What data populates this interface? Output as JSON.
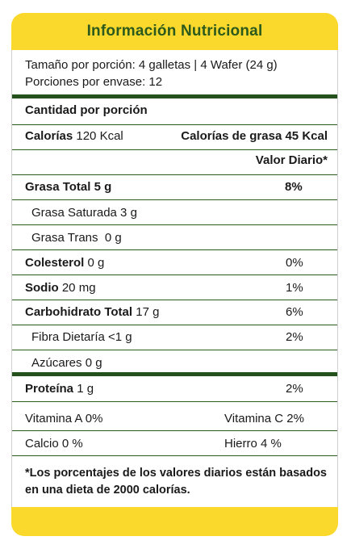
{
  "header": {
    "title": "Información Nutricional"
  },
  "serving": {
    "size": "Tamaño por porción: 4 galletas | 4 Wafer (24 g)",
    "per_container": "Porciones por envase: 12"
  },
  "amount_header": "Cantidad por porción",
  "calories": {
    "label": "Calorías",
    "value": "120 Kcal",
    "fat_calories": "Calorías de grasa 45 Kcal"
  },
  "dv_header": "Valor Diario*",
  "rows": [
    {
      "label": "Grasa Total 5 g",
      "amount": "",
      "dv": "8%"
    },
    {
      "label": "Grasa Saturada 3 g",
      "amount": "",
      "dv": ""
    },
    {
      "label": "Grasa Trans  0 g",
      "amount": "",
      "dv": ""
    },
    {
      "label": "Colesterol",
      "amount": "0 g",
      "dv": "0%"
    },
    {
      "label": "Sodio",
      "amount": "20 mg",
      "dv": "1%"
    },
    {
      "label": "Carbohidrato Total",
      "amount": "17 g",
      "dv": "6%"
    },
    {
      "label": "Fibra Dietaría <1 g",
      "amount": "",
      "dv": "2%"
    },
    {
      "label": "Azúcares 0 g",
      "amount": "",
      "dv": ""
    },
    {
      "label": "Proteína",
      "amount": "1 g",
      "dv": "2%"
    }
  ],
  "vitamins": [
    {
      "left": "Vitamina A 0%",
      "right": "Vitamina C 2%"
    },
    {
      "left": "Calcio 0 %",
      "right": "Hierro 4 %"
    }
  ],
  "footnote": "*Los porcentajes de los valores diarios están basados en una dieta de 2000 calorías.",
  "colors": {
    "header_bg": "#fad92c",
    "title": "#2c5a1c",
    "separator": "#24501c"
  }
}
